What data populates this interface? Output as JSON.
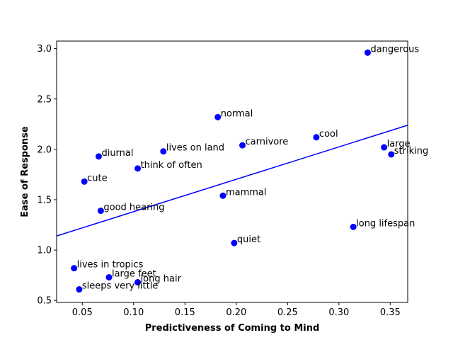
{
  "chart_data": {
    "type": "scatter",
    "xlabel": "Predictiveness of Coming to Mind",
    "ylabel": "Ease of Response",
    "xlim": [
      0.025,
      0.367
    ],
    "ylim": [
      0.48,
      3.075
    ],
    "xticks": [
      0.05,
      0.1,
      0.15,
      0.2,
      0.25,
      0.3,
      0.35
    ],
    "xtick_labels": [
      "0.05",
      "0.10",
      "0.15",
      "0.20",
      "0.25",
      "0.30",
      "0.35"
    ],
    "yticks": [
      0.5,
      1.0,
      1.5,
      2.0,
      2.5,
      3.0
    ],
    "ytick_labels": [
      "0.5",
      "1.0",
      "1.5",
      "2.0",
      "2.5",
      "3.0"
    ],
    "grid": false,
    "point_color": "#0000ff",
    "line_color": "#0000ff",
    "points": [
      {
        "label": "dangerous",
        "x": 0.328,
        "y": 2.96
      },
      {
        "label": "normal",
        "x": 0.182,
        "y": 2.32
      },
      {
        "label": "cool",
        "x": 0.278,
        "y": 2.12
      },
      {
        "label": "carnivore",
        "x": 0.206,
        "y": 2.04
      },
      {
        "label": "large",
        "x": 0.344,
        "y": 2.02
      },
      {
        "label": "lives on land",
        "x": 0.129,
        "y": 1.98
      },
      {
        "label": "striking",
        "x": 0.351,
        "y": 1.95
      },
      {
        "label": "diurnal",
        "x": 0.066,
        "y": 1.93
      },
      {
        "label": "think of often",
        "x": 0.104,
        "y": 1.81
      },
      {
        "label": "cute",
        "x": 0.052,
        "y": 1.68
      },
      {
        "label": "mammal",
        "x": 0.187,
        "y": 1.54
      },
      {
        "label": "good hearing",
        "x": 0.068,
        "y": 1.39
      },
      {
        "label": "long lifespan",
        "x": 0.314,
        "y": 1.23
      },
      {
        "label": "quiet",
        "x": 0.198,
        "y": 1.07
      },
      {
        "label": "lives in tropics",
        "x": 0.042,
        "y": 0.82
      },
      {
        "label": "large feet",
        "x": 0.076,
        "y": 0.73
      },
      {
        "label": "long hair",
        "x": 0.104,
        "y": 0.68
      },
      {
        "label": "sleeps very little",
        "x": 0.047,
        "y": 0.61
      }
    ],
    "trend_line": {
      "x": [
        0.025,
        0.367
      ],
      "y": [
        1.14,
        2.24
      ]
    }
  }
}
